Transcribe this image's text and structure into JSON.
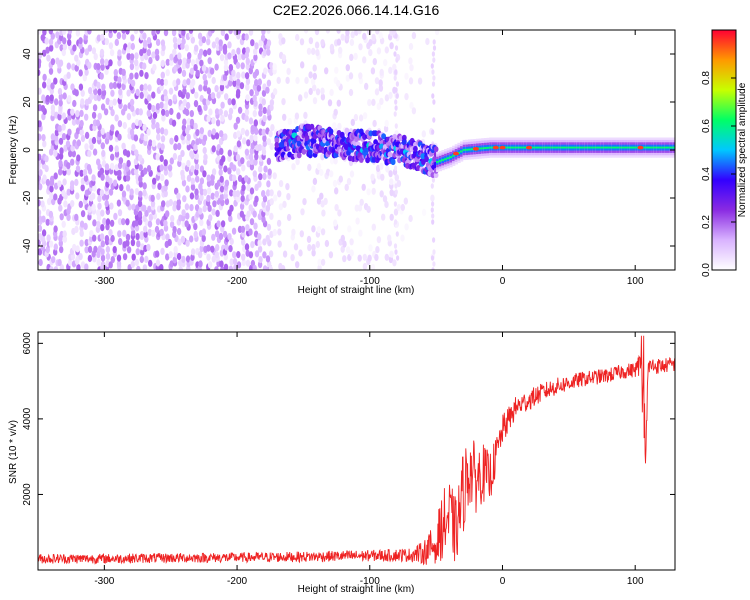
{
  "figure": {
    "title": "C2E2.2026.066.14.14.G16"
  },
  "chart_data": [
    {
      "type": "heatmap",
      "xlabel": "Height of straight line (km)",
      "ylabel": "Frequency (Hz)",
      "xlim": [
        -350,
        130
      ],
      "ylim": [
        -50,
        50
      ],
      "x_ticks": [
        -300,
        -200,
        -100,
        0,
        100
      ],
      "y_ticks": [
        -40,
        -20,
        0,
        20,
        40
      ],
      "colorbar": {
        "label": "Normalized spectral amplitude",
        "range": [
          0,
          1
        ],
        "ticks": [
          0.0,
          0.2,
          0.4,
          0.6,
          0.8
        ],
        "tick_labels": [
          "0.0",
          "0.2",
          "0.4",
          "0.6",
          "0.8"
        ],
        "colormap": [
          "#ffffff",
          "#d9b3ff",
          "#8a2be2",
          "#3300ff",
          "#00c8ff",
          "#00ff66",
          "#c8ff00",
          "#ff9900",
          "#ff0033"
        ]
      },
      "regions": [
        {
          "x_range": [
            -350,
            -175
          ],
          "freq_range": [
            -50,
            50
          ],
          "amplitude": 0.08,
          "pattern": "dense noise"
        },
        {
          "x_range": [
            -175,
            -80
          ],
          "freq_range": [
            -50,
            50
          ],
          "amplitude": 0.03,
          "pattern": "sparse noise"
        },
        {
          "x_range": [
            -80,
            -50
          ],
          "freq_range": [
            -50,
            50
          ],
          "amplitude": 0.02,
          "pattern": "very sparse noise"
        },
        {
          "x_range": [
            -170,
            -50
          ],
          "freq_range": [
            -8,
            8
          ],
          "amplitude": 0.35,
          "pattern": "scattered signal"
        },
        {
          "x_range": [
            -50,
            130
          ],
          "freq_range": [
            -3,
            3
          ],
          "amplitude": 0.6,
          "pattern": "steady carrier"
        }
      ],
      "carrier_track": {
        "x": [
          -170,
          -150,
          -130,
          -110,
          -90,
          -70,
          -60,
          -50,
          -40,
          -30,
          -10,
          0,
          20,
          60,
          100,
          130
        ],
        "frequency": [
          2,
          4,
          3,
          2,
          1,
          -1,
          -3,
          -5,
          -3,
          0,
          1,
          1,
          1,
          1,
          1,
          1
        ]
      }
    },
    {
      "type": "line",
      "xlabel": "Height of straight line (km)",
      "ylabel": "SNR (10 * v/v)",
      "xlim": [
        -350,
        130
      ],
      "ylim": [
        0,
        6300
      ],
      "x_ticks": [
        -300,
        -200,
        -100,
        0,
        100
      ],
      "y_ticks": [
        2000,
        4000,
        6000
      ],
      "series": [
        {
          "color": "#ee2222",
          "x": [
            -350,
            -300,
            -250,
            -200,
            -150,
            -100,
            -70,
            -60,
            -50,
            -45,
            -40,
            -35,
            -30,
            -25,
            -20,
            -15,
            -10,
            -5,
            0,
            5,
            10,
            20,
            30,
            40,
            50,
            60,
            70,
            80,
            90,
            100,
            105,
            108,
            110,
            120,
            130
          ],
          "y": [
            300,
            300,
            320,
            330,
            350,
            380,
            400,
            450,
            700,
            1200,
            1400,
            1000,
            2000,
            2700,
            2400,
            2600,
            2400,
            3000,
            3700,
            4000,
            4300,
            4500,
            4700,
            4850,
            4950,
            5050,
            5100,
            5150,
            5250,
            5300,
            5500,
            4000,
            5400,
            5400,
            5450
          ],
          "noise_amplitude": [
            130,
            130,
            130,
            130,
            140,
            150,
            180,
            300,
            600,
            900,
            1000,
            900,
            1100,
            1000,
            900,
            800,
            700,
            500,
            400,
            350,
            300,
            280,
            250,
            230,
            220,
            200,
            200,
            200,
            200,
            200,
            400,
            500,
            250,
            200,
            200
          ]
        }
      ]
    }
  ]
}
